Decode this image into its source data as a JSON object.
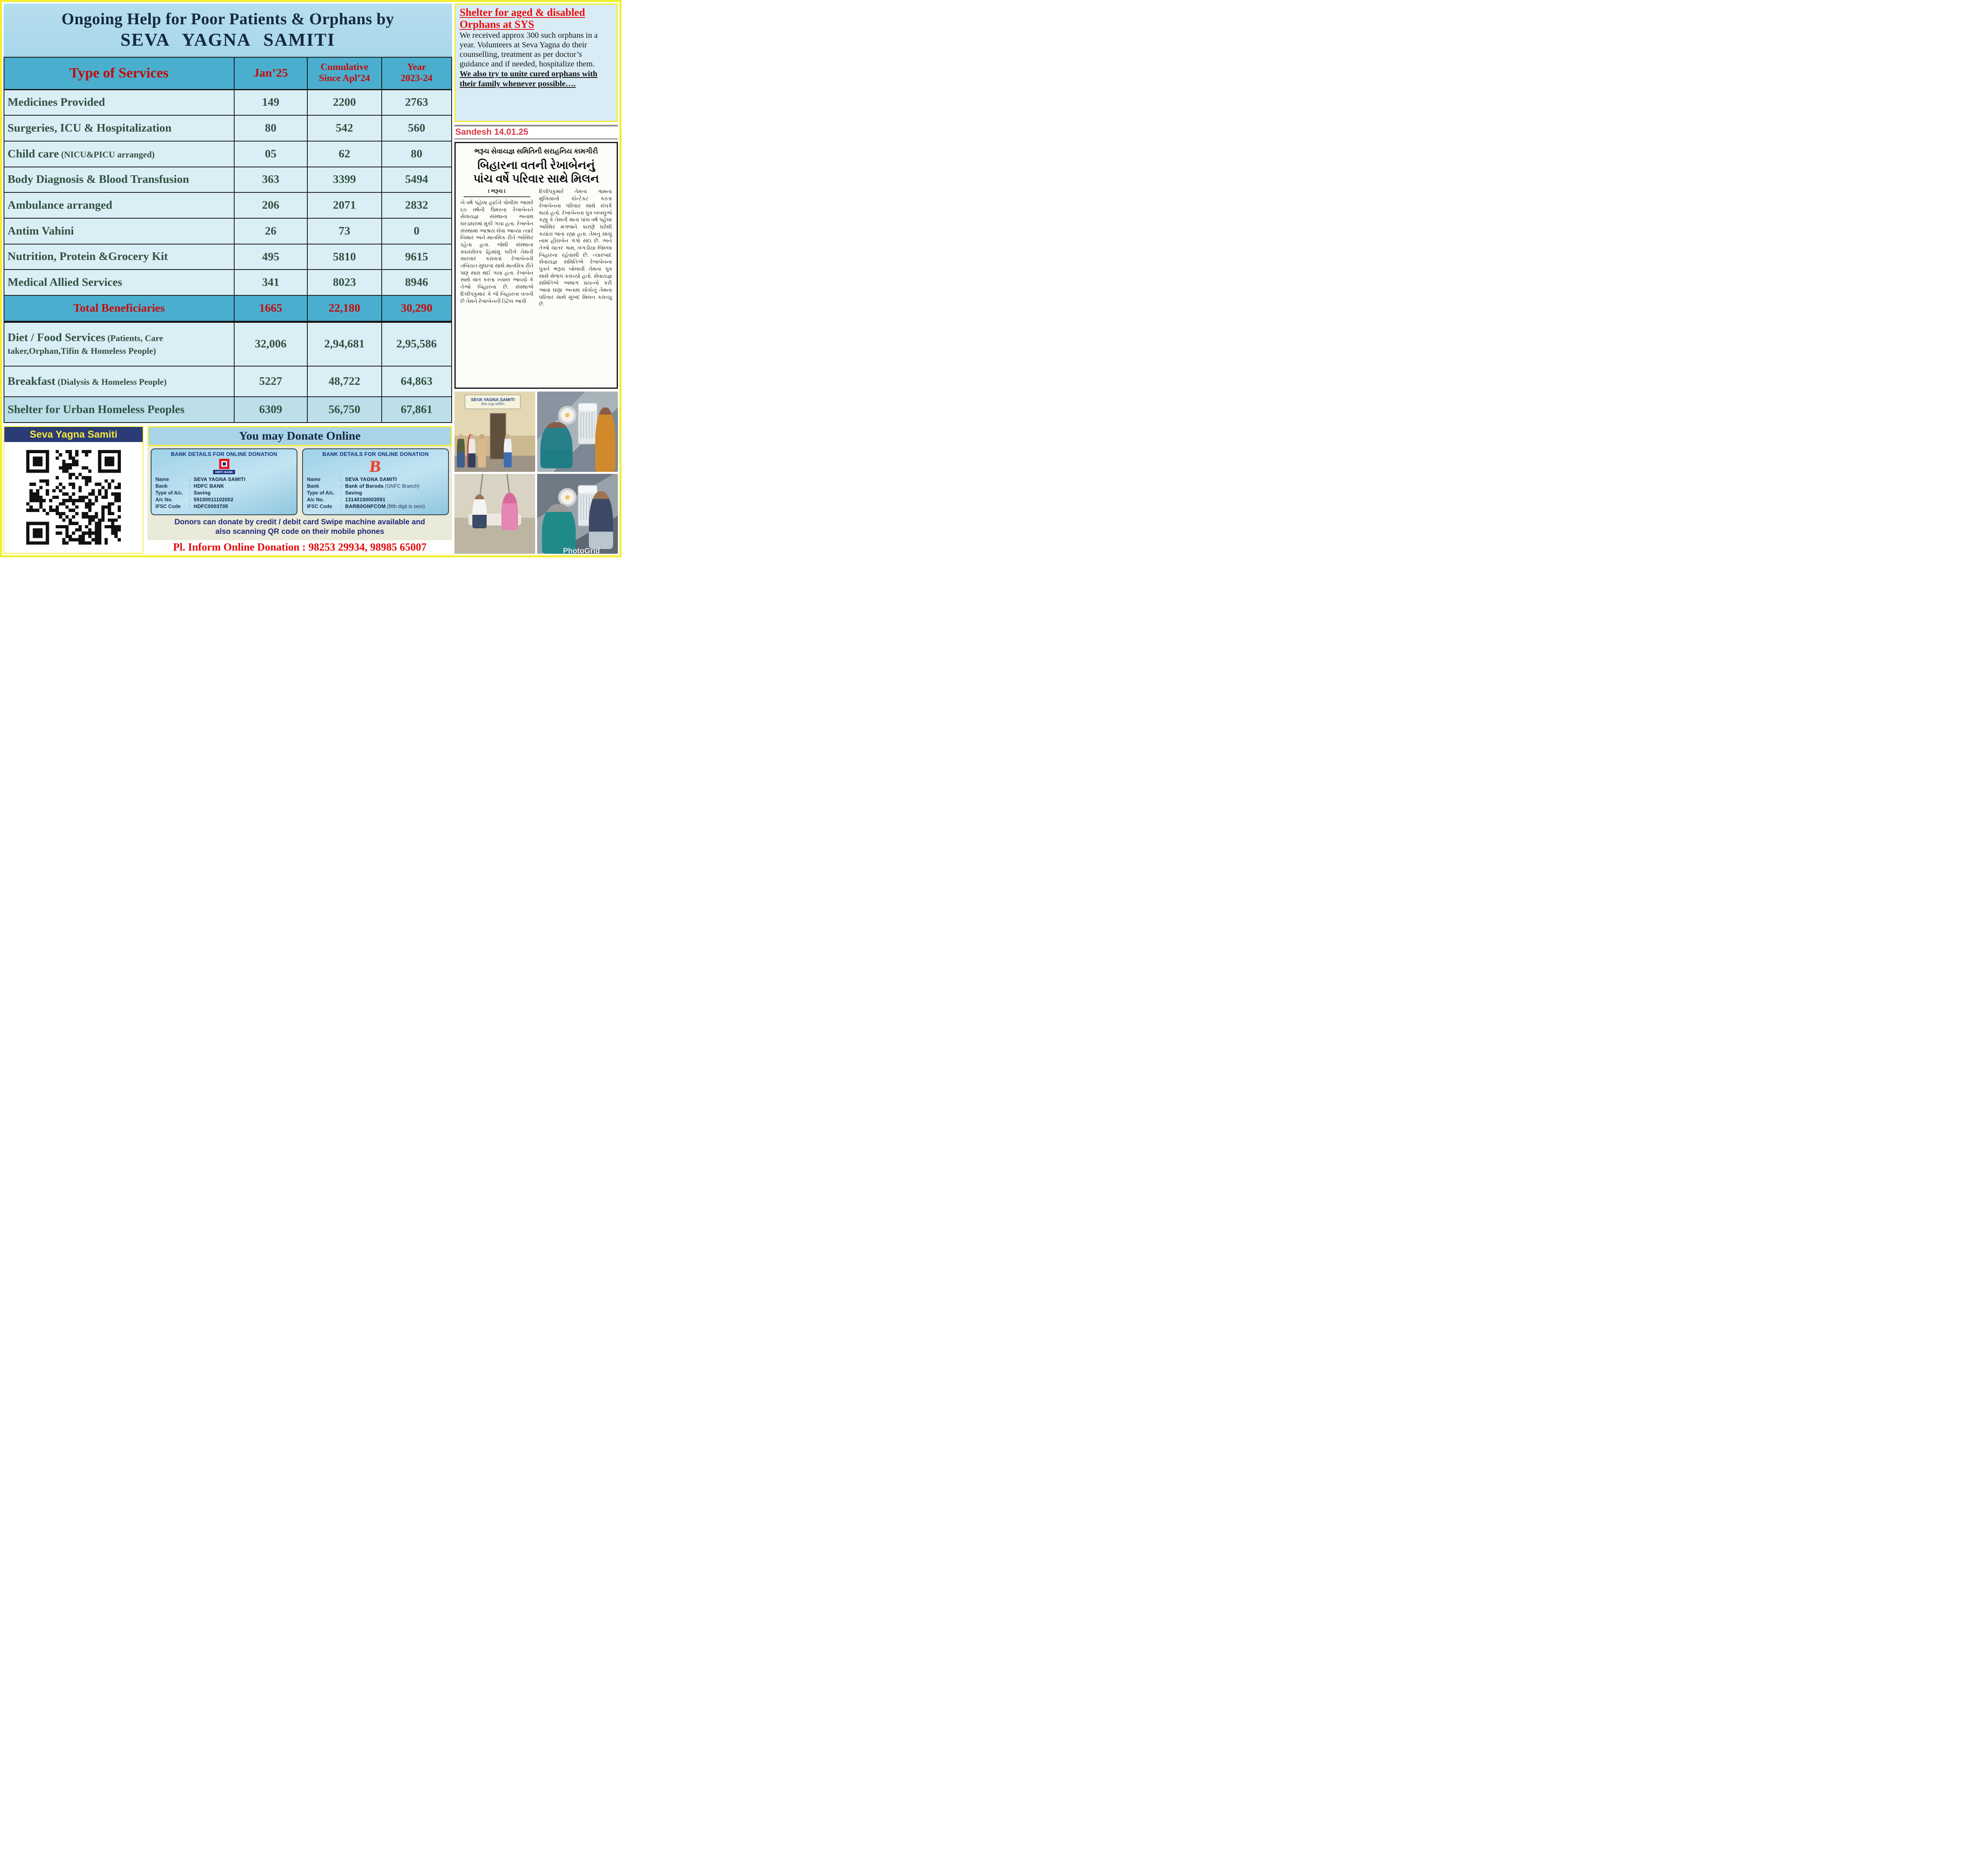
{
  "title": {
    "line1": "Ongoing Help for Poor Patients & Orphans by",
    "line2": "SEVA YAGNA SAMITI"
  },
  "table": {
    "headers": [
      {
        "line1": "Type of  Services"
      },
      {
        "line1": "Jan’25"
      },
      {
        "line1": "Cumulative",
        "line2": "Since Apl’24"
      },
      {
        "line1": "Year",
        "line2": "2023-24"
      }
    ],
    "rows": [
      {
        "id": "medicines",
        "label": "Medicines Provided",
        "jan": "149",
        "cumulative": "2200",
        "year": "2763"
      },
      {
        "id": "surgeries",
        "label": "Surgeries, ICU & Hospitalization",
        "jan": "80",
        "cumulative": "542",
        "year": "560"
      },
      {
        "id": "childcare",
        "label": "Child care",
        "sublabel": "(NICU&PICU arranged)",
        "jan": "05",
        "cumulative": "62",
        "year": "80"
      },
      {
        "id": "diagnosis",
        "label": "Body Diagnosis & Blood Transfusion",
        "jan": "363",
        "cumulative": "3399",
        "year": "5494"
      },
      {
        "id": "ambulance",
        "label": "Ambulance arranged",
        "jan": "206",
        "cumulative": "2071",
        "year": "2832"
      },
      {
        "id": "antim",
        "label": "Antim Vahini",
        "jan": "26",
        "cumulative": "73",
        "year": "0"
      },
      {
        "id": "nutrition",
        "label": "Nutrition, Protein &Grocery Kit",
        "jan": "495",
        "cumulative": "5810",
        "year": "9615"
      },
      {
        "id": "allied",
        "label": "Medical Allied Services",
        "jan": "341",
        "cumulative": "8023",
        "year": "8946"
      },
      {
        "id": "total",
        "label": "Total  Beneficiaries",
        "jan": "1665",
        "cumulative": "22,180",
        "year": "30,290",
        "emphasis": true
      },
      {
        "id": "diet",
        "label": "Diet / Food  Services",
        "sublabel": "(Patients, Care taker,Orphan,Tifin & Homeless People)",
        "jan": "32,006",
        "cumulative": "2,94,681",
        "year": "2,95,586"
      },
      {
        "id": "breakfast",
        "label": "Breakfast",
        "sublabel": "(Dialysis & Homeless People)",
        "jan": "5227",
        "cumulative": "48,722",
        "year": "64,863"
      },
      {
        "id": "shelter",
        "label": "Shelter for Urban Homeless Peoples",
        "jan": "6309",
        "cumulative": "56,750",
        "year": "67,861"
      }
    ]
  },
  "sidebar_note": {
    "heading": "Shelter for aged & disabled Orphans at SYS",
    "para1": "We received approx 300 such orphans in a year. Volunteers at Seva Yagna do their counselling, treatment as per doctor’s guidance and if needed, hospitalize them.",
    "para2": "We also try to unite cured orphans with their family whenever possible…."
  },
  "newspaper": {
    "source_label": "Sandesh 14.01.25",
    "kicker": "ભરૂચ સેવાયજ્ઞ સમિતિની સરાહનિય કામગીરી",
    "headline": "બિહારના વતની રેખાબેનનું\nપાંચ વર્ષે પરિવાર સાથે મિલન",
    "dateline": "। ભરૂચ ।",
    "body_col1": "બે વર્ષ પહેલા હાઈવે પોલીસ આશરે ૬૦ વર્ષની ઉંમરના રેખાબેનને સેવાયજ્ઞ સંસ્થાના અનાથ ઘરડાઘરમાં મુકી ગયા હતા. રેખાબેન સંસ્થામાં આશ્રય લેવા આવ્યા ત્યારે બિમાર અને માનસિક રીતે અસ્થિર રહેતા હતા. જેથી સંસ્થાના સ્વયંસેવક હિમાંશુ પરીખે તેમની સારવાર કરાવતાં રેખાબેનની તબિયત સુધરવા સાથે માનસિક રીતે પણ સારા થઈ ગયા હતા. રેખાબેન સાથે વાત કરતા ખ્યાલ આવ્યો કે તેઓ બિહારના છે. સંસ્થાએ દિલીપકુમાર કે જે બિહારના વતની છે તેમને રેખાબેનની ડિટેલ આપી",
    "body_col2": "દિલીપકુમારે તેમના ગામના મુખિયાનો કોન્ટેકટ કરતા રેખાબેનના પરિવાર સાથે સંપર્ક થયો હતો. રેખાબેનના પુત્ર બબલુએ કહ્યુ કે તેમની માતા પાંચ વર્ષ પહેલા અસ્થિર મગજને કારણે ઘરેથી કયાંય જતા રહ્યા હતા. તેમનુ સાચુ નામ હીરાબેન ગંગો સદા છે. અને તેઓ ચાતર ગામ, ખગડીયા જિલ્લા બિહારના રહેવાસી છે. ત્યારબાદ સેવાયજ્ઞ સમિતિએ રેખાબેનના પુત્રને ભરૂચ બોલાવી તેમના પુત્ર સાથે મેળાપ કરાવ્યો હતો. સેવાયજ્ઞ સમિતિએ અથાગ પ્રયત્નો કરી આવા ઘણા અનાથ લોકોનું તેમના પરિવાર સાથે સુખદ મિલન કરાવ્યુ છે."
  },
  "qr_block": {
    "org_label": "Seva Yagna Samiti",
    "qr_icon": "qr-code"
  },
  "donate": {
    "heading": "You may Donate Online",
    "cards": [
      {
        "title": "BANK DETAILS FOR ONLINE DONATION",
        "logo_icon": "hdfc-bank-logo",
        "logo_text": "HDFC BANK",
        "rows": [
          {
            "label": "Name",
            "value": "SEVA YAGNA SAMITI"
          },
          {
            "label": "Bank",
            "value": "HDFC BANK"
          },
          {
            "label": "Type of A/c.",
            "value": "Saving"
          },
          {
            "label": "A/c No.",
            "value": "59100011102002"
          },
          {
            "label": "IFSC Code",
            "value": "HDFC0003705"
          }
        ]
      },
      {
        "title": "BANK DETAILS FOR ONLINE DONATION",
        "logo_icon": "bank-of-baroda-logo",
        "rows": [
          {
            "label": "Name",
            "value": "SEVA YAGNA SAMITI"
          },
          {
            "label": "Bank",
            "value": "Bank of Baroda",
            "suffix": " (GNFC Branch)"
          },
          {
            "label": "Type of A/c.",
            "value": "Saving"
          },
          {
            "label": "A/c No.",
            "value": "13140100003591"
          },
          {
            "label": "IFSC Code",
            "value": "BARB0GNFCOM",
            "suffix": " (fifth digit is zero)"
          }
        ]
      }
    ],
    "donors_note": "Donors can donate by credit / debit card Swipe machine available and also scanning QR code on their mobile phones",
    "phone_line": "Pl. Inform Online Donation : 98253 29934, 98985 65007"
  },
  "photos": {
    "grid": [
      {
        "name": "group-at-sys-building",
        "sign_line1": "SEVA YAGNA SAMITI",
        "sign_line2": "સેવા યજ્ઞ સમિતિ"
      },
      {
        "name": "patient-on-bed-with-air-cooler"
      },
      {
        "name": "volunteer-with-woman-on-swing"
      },
      {
        "name": "volunteer-with-elderly-patient",
        "watermark": "PhotoGrid"
      }
    ]
  },
  "colors": {
    "yellow_border": "#f2ee2f",
    "title_bg": "#aedcec",
    "header_teal": "#4aafce",
    "row_light": "#daeef6",
    "row_dark": "#bcdfe9",
    "table_text_green": "#335140",
    "accent_red": "#c40b0b",
    "navy": "#16293f",
    "sandesh_red": "#dd3642",
    "card_text_navy": "#11337f",
    "qr_header_navy": "#2a3b76",
    "qr_header_yellow": "#f5e93f"
  }
}
